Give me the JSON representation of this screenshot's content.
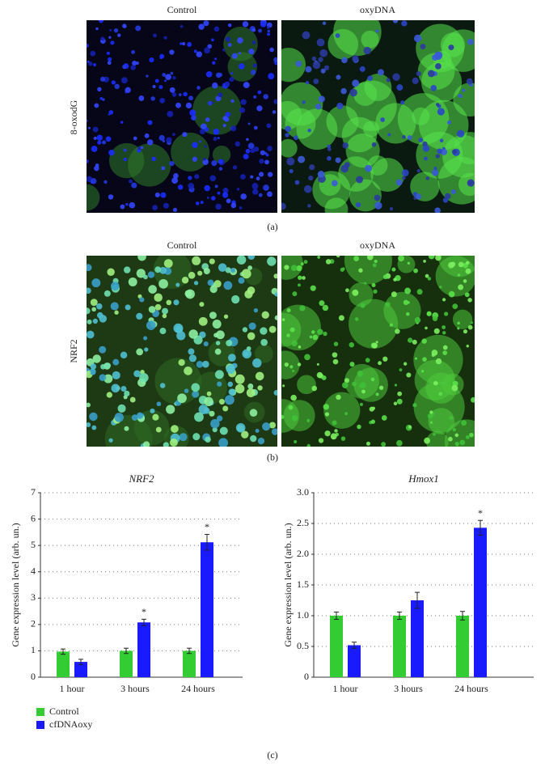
{
  "panels": [
    {
      "label": "(a)",
      "row_label": "8-oxodG",
      "columns": [
        "Control",
        "oxyDNA"
      ]
    },
    {
      "label": "(b)",
      "row_label": "NRF2",
      "columns": [
        "Control",
        "oxyDNA"
      ]
    }
  ],
  "panel_c_label": "(c)",
  "chart_data": [
    {
      "type": "bar",
      "title": "NRF2",
      "y_label": "Gene expression level (arb. un.)",
      "categories": [
        "1 hour",
        "3 hours",
        "24 hours"
      ],
      "series": [
        {
          "name": "Control",
          "color": "#33cc33",
          "values": [
            0.97,
            1.0,
            1.0
          ],
          "errors": [
            0.1,
            0.1,
            0.1
          ],
          "significance": [
            null,
            null,
            null
          ]
        },
        {
          "name": "cfDNAoxy",
          "color": "#1a1aff",
          "values": [
            0.58,
            2.08,
            5.12
          ],
          "errors": [
            0.1,
            0.12,
            0.3
          ],
          "significance": [
            null,
            "*",
            "*"
          ]
        }
      ],
      "ylim": [
        0,
        7
      ],
      "yticks": [
        0,
        1,
        2,
        3,
        4,
        5,
        6,
        7
      ],
      "grid": true
    },
    {
      "type": "bar",
      "title": "Hmox1",
      "y_label": "Gene expression level (arb. un.)",
      "categories": [
        "1 hour",
        "3 hours",
        "24 hours"
      ],
      "series": [
        {
          "name": "Control",
          "color": "#33cc33",
          "values": [
            1.0,
            1.0,
            1.0
          ],
          "errors": [
            0.06,
            0.06,
            0.07
          ],
          "significance": [
            null,
            null,
            null
          ]
        },
        {
          "name": "cfDNAoxy",
          "color": "#1a1aff",
          "values": [
            0.52,
            1.25,
            2.43
          ],
          "errors": [
            0.05,
            0.13,
            0.12
          ],
          "significance": [
            null,
            null,
            "*"
          ]
        }
      ],
      "ylim": [
        0,
        3
      ],
      "yticks": [
        0,
        0.5,
        {
          "value": 1,
          "label": "1.0"
        },
        1.5,
        {
          "value": 2,
          "label": "2.0"
        },
        2.5,
        {
          "value": 3,
          "label": "3.0"
        }
      ],
      "grid": true
    }
  ]
}
